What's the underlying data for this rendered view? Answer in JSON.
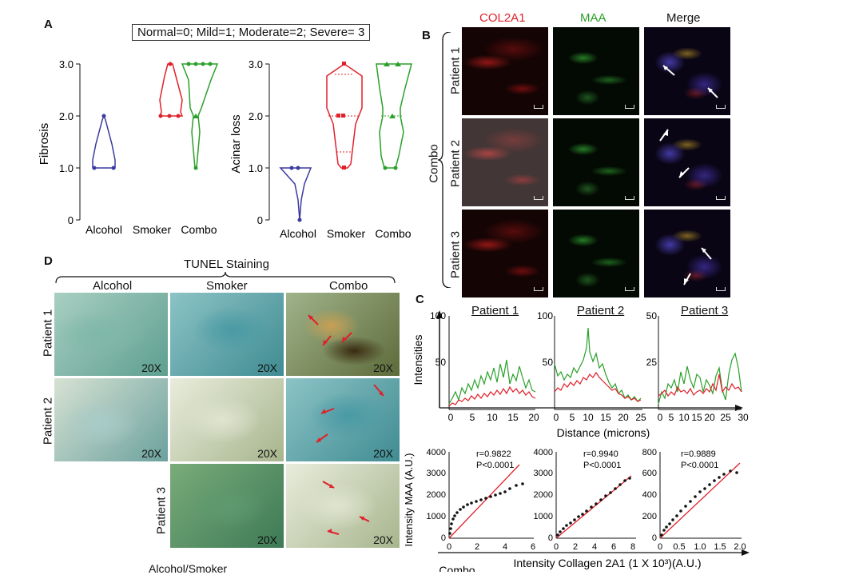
{
  "panel_labels": {
    "A": "A",
    "B": "B",
    "C": "C",
    "D": "D"
  },
  "panelA": {
    "legend": "Normal=0; Mild=1; Moderate=2; Severe= 3",
    "groups": [
      "Alcohol",
      "Smoker",
      "Combo"
    ],
    "fibrosis": {
      "ylabel": "Fibrosis",
      "ticks": [
        "0",
        "1.0",
        "2.0",
        "3.0"
      ]
    },
    "acinar": {
      "ylabel": "Acinar loss",
      "ticks": [
        "0",
        "1.0",
        "2.0",
        "3.0"
      ]
    },
    "colors": {
      "alcohol": "#3a3aa0",
      "smoker": "#e0202a",
      "combo": "#2aa02a"
    }
  },
  "chart_data": [
    {
      "type": "violin",
      "title": "",
      "ylabel": "Fibrosis",
      "categories": [
        "Alcohol",
        "Smoker",
        "Combo"
      ],
      "points": {
        "Alcohol": [
          1,
          1,
          2
        ],
        "Smoker": [
          2,
          2,
          2,
          3
        ],
        "Combo": [
          1,
          2,
          3,
          3,
          3,
          3
        ]
      },
      "ylim": [
        0,
        3
      ]
    },
    {
      "type": "violin",
      "title": "",
      "ylabel": "Acinar loss",
      "categories": [
        "Alcohol",
        "Smoker",
        "Combo"
      ],
      "points": {
        "Alcohol": [
          0,
          1,
          1
        ],
        "Smoker": [
          1,
          2,
          2,
          3
        ],
        "Combo": [
          1,
          1,
          2,
          3,
          3
        ]
      },
      "ylim": [
        0,
        3
      ]
    },
    {
      "type": "line",
      "title": "Patient 1",
      "xlabel": "Distance (microns)",
      "ylabel": "Intensities",
      "x": [
        0,
        2,
        4,
        6,
        8,
        10,
        12,
        14,
        16,
        18,
        20
      ],
      "series": [
        {
          "name": "MAA",
          "values": [
            10,
            18,
            25,
            30,
            42,
            35,
            50,
            38,
            55,
            30,
            40
          ]
        },
        {
          "name": "COL2A1",
          "values": [
            8,
            12,
            18,
            15,
            20,
            18,
            22,
            16,
            20,
            15,
            18
          ]
        }
      ],
      "xticks": [
        "0",
        "5",
        "10",
        "15",
        "20"
      ],
      "yticks": [
        "50",
        "100"
      ],
      "ylim": [
        0,
        100
      ]
    },
    {
      "type": "line",
      "title": "Patient 2",
      "xlabel": "Distance (microns)",
      "ylabel": "",
      "x": [
        0,
        2.5,
        5,
        7.5,
        10,
        12.5,
        15,
        17.5,
        20,
        22.5,
        25
      ],
      "series": [
        {
          "name": "MAA",
          "values": [
            50,
            30,
            38,
            45,
            60,
            88,
            50,
            30,
            25,
            15,
            10
          ]
        },
        {
          "name": "COL2A1",
          "values": [
            20,
            22,
            25,
            30,
            35,
            38,
            30,
            22,
            15,
            12,
            8
          ]
        }
      ],
      "xticks": [
        "0",
        "5",
        "10",
        "15",
        "20",
        "25"
      ],
      "yticks": [
        "50",
        "100"
      ],
      "ylim": [
        0,
        100
      ]
    },
    {
      "type": "line",
      "title": "Patient 3",
      "xlabel": "Distance (microns)",
      "ylabel": "",
      "x": [
        0,
        3,
        6,
        9,
        12,
        15,
        18,
        21,
        24,
        27,
        30
      ],
      "series": [
        {
          "name": "MAA",
          "values": [
            5,
            12,
            15,
            18,
            25,
            15,
            20,
            25,
            18,
            22,
            28
          ]
        },
        {
          "name": "COL2A1",
          "values": [
            8,
            10,
            12,
            14,
            13,
            12,
            15,
            17,
            18,
            16,
            14
          ]
        }
      ],
      "xticks": [
        "0",
        "5",
        "10",
        "15",
        "20",
        "25",
        "30"
      ],
      "yticks": [
        "25",
        "50"
      ],
      "ylim": [
        0,
        50
      ]
    },
    {
      "type": "scatter",
      "title": "",
      "xlabel": "Intensity Collagen 2A1 (1 X 10³)(A.U.)",
      "ylabel": "Intensity MAA (A.U.)",
      "annotation": [
        "r=0.9822",
        "P<0.0001"
      ],
      "x": [
        0,
        0.5,
        1,
        1.5,
        2,
        2.5,
        3,
        3.5,
        4,
        4.5,
        5,
        5.5
      ],
      "y": [
        200,
        700,
        1000,
        1200,
        1400,
        1600,
        1750,
        1850,
        2000,
        2200,
        2400,
        2500
      ],
      "fit": [
        [
          0,
          0
        ],
        [
          5,
          3400
        ]
      ],
      "xticks": [
        "0",
        "2",
        "4",
        "6"
      ],
      "yticks": [
        "0",
        "1000",
        "2000",
        "3000",
        "4000"
      ],
      "xlim": [
        0,
        6
      ],
      "ylim": [
        0,
        4000
      ]
    },
    {
      "type": "scatter",
      "title": "",
      "annotation": [
        "r=0.9940",
        "P<0.0001"
      ],
      "x": [
        0,
        1,
        2,
        3,
        4,
        5,
        6,
        7,
        7.5
      ],
      "y": [
        0,
        300,
        700,
        1000,
        1400,
        1750,
        2100,
        2500,
        2700
      ],
      "fit": [
        [
          0,
          0
        ],
        [
          8,
          2900
        ]
      ],
      "xticks": [
        "0",
        "2",
        "4",
        "6",
        "8"
      ],
      "yticks": [
        "0",
        "1000",
        "2000",
        "3000",
        "4000"
      ],
      "xlim": [
        0,
        8
      ],
      "ylim": [
        0,
        4000
      ]
    },
    {
      "type": "scatter",
      "title": "",
      "annotation": [
        "r=0.9889",
        "P<0.0001"
      ],
      "x": [
        0,
        0.2,
        0.4,
        0.6,
        0.8,
        1.0,
        1.2,
        1.4,
        1.6,
        1.8
      ],
      "y": [
        0,
        100,
        180,
        250,
        320,
        380,
        450,
        520,
        590,
        620
      ],
      "fit": [
        [
          0,
          0
        ],
        [
          2.0,
          700
        ]
      ],
      "xticks": [
        "0",
        "0.5",
        "1.0",
        "1.5",
        "2.0"
      ],
      "yticks": [
        "0",
        "200",
        "400",
        "600",
        "800"
      ],
      "xlim": [
        0,
        2
      ],
      "ylim": [
        0,
        800
      ]
    }
  ],
  "panelB": {
    "columns": [
      "COL2A1",
      "MAA",
      "Merge"
    ],
    "rows": [
      "Patient 1",
      "Patient 2",
      "Patient 3"
    ],
    "group": "Combo",
    "colors": {
      "col2a1": "#e0202a",
      "maa": "#2aa02a"
    }
  },
  "panelC": {
    "titles": [
      "Patient 1",
      "Patient 2",
      "Patient 3"
    ],
    "ylabel": "Intensities",
    "xlabel": "Distance (microns)",
    "scatter_ylabel": "Intensity MAA (A.U.)",
    "scatter_xlabel": "Intensity Collagen 2A1 (1 X 10³)(A.U.)",
    "bottom_label": "Combo"
  },
  "panelD": {
    "title": "TUNEL Staining",
    "columns": [
      "Alcohol",
      "Smoker",
      "Combo"
    ],
    "rows": [
      "Patient 1",
      "Patient 2",
      "Patient 3"
    ],
    "magnification": "20X",
    "bottom_label": "Alcohol/Smoker"
  }
}
